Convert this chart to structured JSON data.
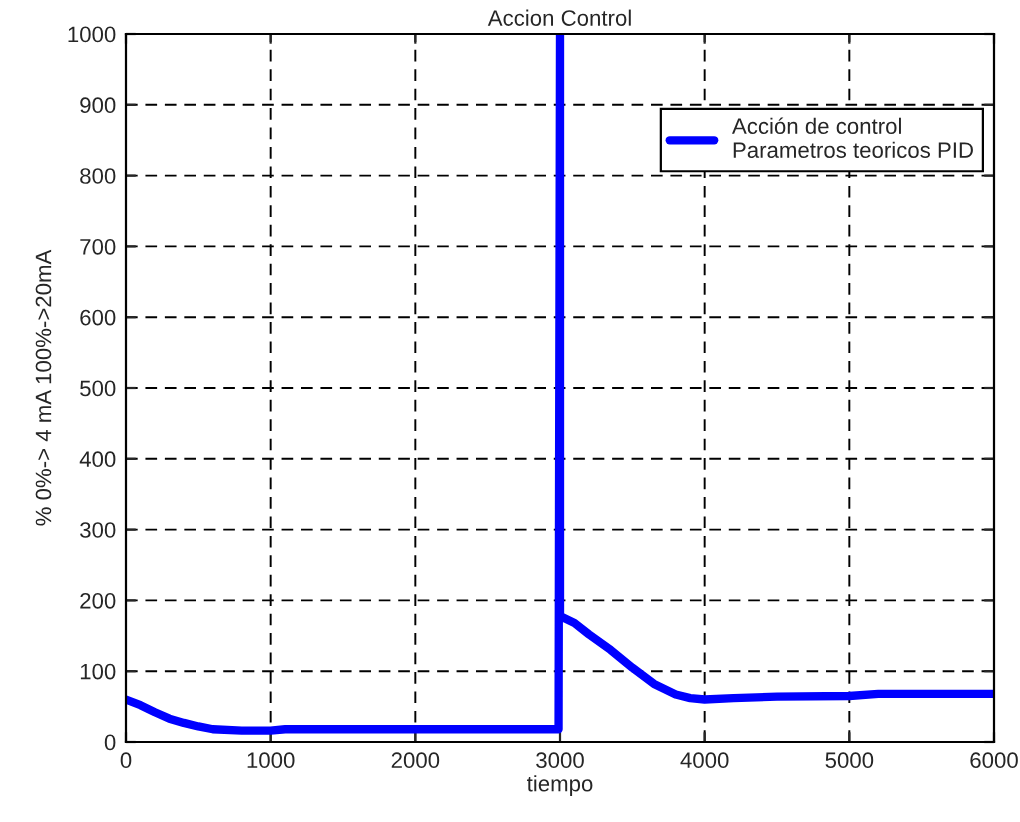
{
  "chart_data": {
    "type": "line",
    "title": "Accion Control",
    "xlabel": "tiempo",
    "ylabel": "% 0%-> 4 mA 100%->20mA",
    "series": [
      {
        "name": "Acción de control\nParametros teoricos PID",
        "color": "#0000ff",
        "x": [
          0,
          100,
          200,
          300,
          400,
          500,
          600,
          800,
          1000,
          1100,
          2000,
          2990,
          3000,
          3000,
          3100,
          3200,
          3350,
          3500,
          3650,
          3800,
          3900,
          4000,
          4200,
          4500,
          5000,
          5200,
          6000
        ],
        "values": [
          60,
          52,
          42,
          33,
          27,
          22,
          18,
          16,
          16,
          18,
          18,
          18,
          1000,
          178,
          168,
          152,
          130,
          105,
          82,
          67,
          62,
          60,
          62,
          64,
          65,
          68,
          68
        ]
      }
    ],
    "xlim": [
      0,
      6000
    ],
    "ylim": [
      0,
      1000
    ],
    "xticks": [
      0,
      1000,
      2000,
      3000,
      4000,
      5000,
      6000
    ],
    "yticks": [
      0,
      100,
      200,
      300,
      400,
      500,
      600,
      700,
      800,
      900,
      1000
    ],
    "grid": true,
    "legend": "top right",
    "line_style": "solid",
    "marker": "none"
  }
}
